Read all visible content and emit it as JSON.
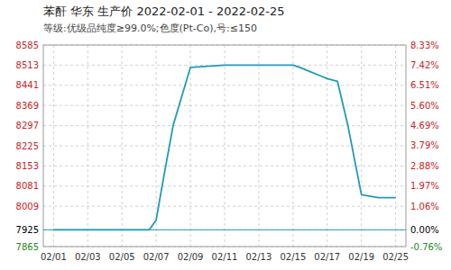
{
  "chart_data": {
    "type": "line",
    "title": "苯酐 华东 生产价 2022-02-01 - 2022-02-25",
    "subtitle": "等级:优级品纯度≥99.0%;色度(Pt-Co),号:≤150",
    "x": [
      0,
      1,
      2,
      2.8,
      3.0,
      3.2,
      3.5,
      4.0,
      5.0,
      6.0,
      7.0,
      7.2,
      7.5,
      7.8,
      8.0,
      8.3,
      8.6,
      9.0,
      9.5,
      10.0
    ],
    "xlim": [
      -0.3,
      10.3
    ],
    "xticks": [
      {
        "value": 0,
        "label": "02/01"
      },
      {
        "value": 1,
        "label": "02/03"
      },
      {
        "value": 2,
        "label": "02/05"
      },
      {
        "value": 3,
        "label": "02/07"
      },
      {
        "value": 4,
        "label": "02/09"
      },
      {
        "value": 5,
        "label": "02/11"
      },
      {
        "value": 6,
        "label": "02/13"
      },
      {
        "value": 7,
        "label": "02/15"
      },
      {
        "value": 8,
        "label": "02/17"
      },
      {
        "value": 9,
        "label": "02/19"
      },
      {
        "value": 10,
        "label": "02/25"
      }
    ],
    "series": [
      {
        "color": "#2299bb",
        "values": [
          7925,
          7925,
          7925,
          7925,
          7960,
          8100,
          8300,
          8505,
          8513,
          8513,
          8513,
          8505,
          8490,
          8475,
          8465,
          8455,
          8300,
          8050,
          8040,
          8040
        ]
      }
    ],
    "baseline": 7925,
    "ylim": [
      7865,
      8585
    ],
    "yticks": [
      7865,
      7925,
      8009,
      8081,
      8153,
      8225,
      8297,
      8369,
      8441,
      8513,
      8585
    ],
    "y2lim": [
      -0.0076,
      0.0833
    ],
    "y2ticks": [
      {
        "value": -0.0076,
        "label": "-0.76%"
      },
      {
        "value": 0.0,
        "label": "0.00%"
      },
      {
        "value": 0.0106,
        "label": "1.06%"
      },
      {
        "value": 0.0197,
        "label": "1.97%"
      },
      {
        "value": 0.0288,
        "label": "2.88%"
      },
      {
        "value": 0.0379,
        "label": "3.79%"
      },
      {
        "value": 0.0469,
        "label": "4.69%"
      },
      {
        "value": 0.056,
        "label": "5.60%"
      },
      {
        "value": 0.0651,
        "label": "6.51%"
      },
      {
        "value": 0.0742,
        "label": "7.42%"
      },
      {
        "value": 0.0833,
        "label": "8.33%"
      }
    ],
    "grid": true
  }
}
